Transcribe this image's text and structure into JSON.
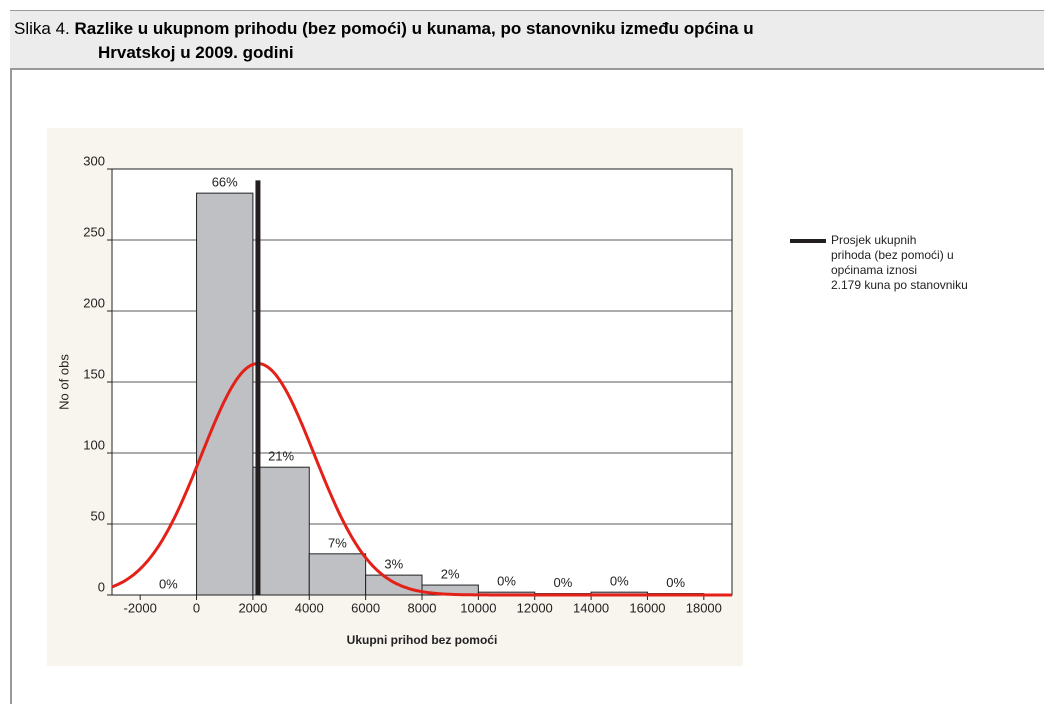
{
  "figure_label": "Slika 4.",
  "title_lines": [
    "Razlike u ukupnom prihodu (bez pomoći) u kunama, po stanovniku između općina u",
    "Hrvatskoj u 2009. godini"
  ],
  "chart_data": {
    "type": "histogram",
    "bins": [
      -2000,
      0,
      2000,
      4000,
      6000,
      8000,
      10000,
      12000,
      14000,
      16000,
      18000
    ],
    "values": [
      0,
      283,
      90,
      29,
      14,
      7,
      2,
      1,
      2,
      1
    ],
    "bar_labels": [
      "0%",
      "66%",
      "21%",
      "7%",
      "3%",
      "2%",
      "0%",
      "0%",
      "0%",
      "0%"
    ],
    "color": "#bfc0c4",
    "xlim": [
      -3000,
      19000
    ],
    "ylim": [
      0,
      300
    ],
    "xticks": [
      -2000,
      0,
      2000,
      4000,
      6000,
      8000,
      10000,
      12000,
      14000,
      16000,
      18000
    ],
    "yticks": [
      0,
      50,
      100,
      150,
      200,
      250,
      300
    ],
    "grid": true,
    "x_label": "Ukupni prihod bez pomoći",
    "y_label": "No of obs",
    "fit": {
      "color": "#e32119",
      "mean": 2179,
      "sd": 2000,
      "peak": 163
    },
    "mean_line": {
      "value": 2179,
      "top": 292,
      "color": "#231f20",
      "legend_lines": [
        "Prosjek ukupnih",
        "prihoda (bez pomoći) u",
        "općinama iznosi",
        "2.179 kuna po stanovniku"
      ]
    }
  }
}
